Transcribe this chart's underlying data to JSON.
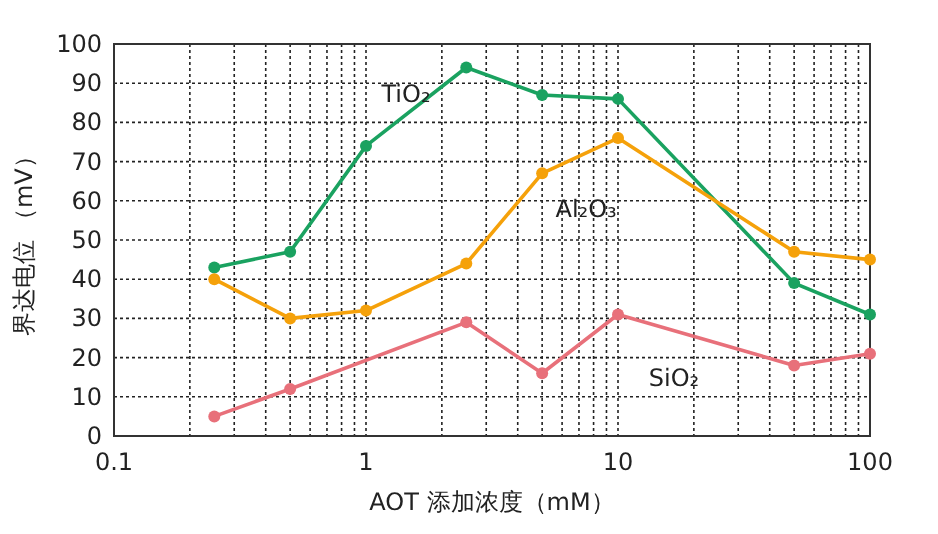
{
  "chart_data": {
    "type": "line",
    "xlabel": "AOT  添加浓度（mM）",
    "ylabel": "界达电位  （mV）",
    "log": "x",
    "grid": true,
    "marker": "circle",
    "line_style": "solid",
    "xlim": [
      0.1,
      100
    ],
    "xticks": [
      0.1,
      1,
      10,
      100
    ],
    "ylim": [
      0,
      100
    ],
    "yticks": [
      0,
      10,
      20,
      30,
      40,
      50,
      60,
      70,
      80,
      90,
      100
    ],
    "series": [
      {
        "name": "TiO₂",
        "color": "#1aa260",
        "x": [
          0.25,
          0.5,
          1,
          2.5,
          5,
          10,
          50,
          100
        ],
        "values": [
          43,
          47,
          74,
          94,
          87,
          86,
          39,
          31
        ]
      },
      {
        "name": "Al₂O₃",
        "color": "#f5a10a",
        "x": [
          0.25,
          0.5,
          1,
          2.5,
          5,
          10,
          50,
          100
        ],
        "values": [
          40,
          30,
          32,
          44,
          67,
          76,
          47,
          45
        ]
      },
      {
        "name": "SiO₂",
        "color": "#e8707a",
        "x": [
          0.25,
          0.5,
          2.5,
          5,
          10,
          50,
          100
        ],
        "values": [
          5,
          12,
          29,
          16,
          31,
          18,
          21
        ]
      }
    ]
  }
}
